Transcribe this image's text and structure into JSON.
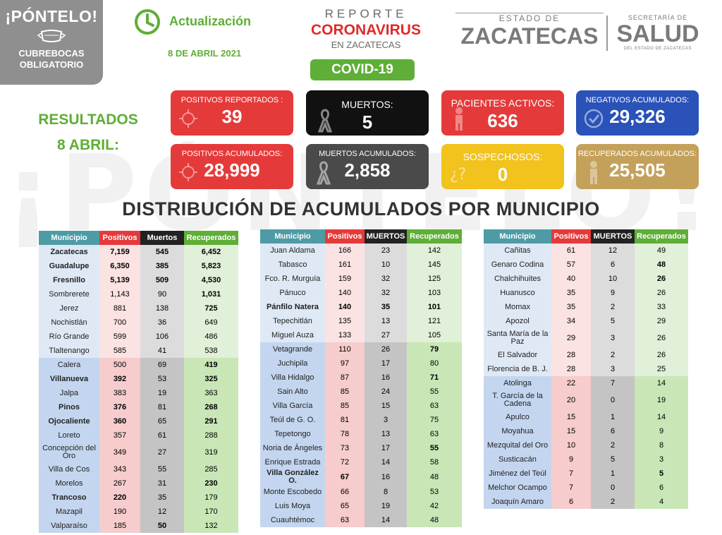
{
  "watermark": "¡PÓNTELO!",
  "badge": {
    "line1": "¡PÓNTELO!",
    "line2": "CUBREBOCAS",
    "line3": "OBLIGATORIO"
  },
  "update": {
    "label": "Actualización",
    "date": "8 DE ABRIL 2021"
  },
  "report": {
    "line1": "REPORTE",
    "line2": "CORONAVIRUS",
    "line3": "EN ZACATECAS",
    "badge": "COVID-19"
  },
  "estado": {
    "line1": "ESTADO DE",
    "line2": "ZACATECAS"
  },
  "salud": {
    "line1": "SECRETARÍA DE",
    "line2": "SALUD",
    "line3": "DEL ESTADO DE ZACATECAS"
  },
  "results": {
    "line1": "RESULTADOS",
    "line2": "8 ABRIL:"
  },
  "cards": [
    {
      "label": "POSITIVOS REPORTADOS :",
      "value": "39",
      "color": "#e53a3a",
      "icon": "virus-icon"
    },
    {
      "label": "MUERTOS:",
      "value": "5",
      "color": "#111111",
      "icon": "ribbon-icon"
    },
    {
      "label": "PACIENTES ACTIVOS:",
      "value": "636",
      "color": "#e53a3a",
      "icon": "person-icon"
    },
    {
      "label": "NEGATIVOS ACUMULADOS:",
      "value": "29,326",
      "color": "#2a52b8",
      "icon": "check-icon"
    },
    {
      "label": "POSITIVOS ACUMULADOS:",
      "value": "28,999",
      "color": "#e53a3a",
      "icon": "virus-icon"
    },
    {
      "label": "MUERTOS ACUMULADOS:",
      "value": "2,858",
      "color": "#4a4a4a",
      "icon": "ribbon-icon"
    },
    {
      "label": "SOSPECHOSOS:",
      "value": "0",
      "color": "#f2c21d",
      "icon": "question-icon"
    },
    {
      "label": "RECUPERADOS ACUMULADOS:",
      "value": "25,505",
      "color": "#c4a15a",
      "icon": "person-icon"
    }
  ],
  "section_title": "DISTRIBUCIÓN DE ACUMULADOS POR MUNICIPIO",
  "tables": [
    {
      "headers": [
        "Municipio",
        "Positivos",
        "Muertos",
        "Recuperados"
      ],
      "rows": [
        [
          "Zacatecas",
          "7,159",
          "545",
          "6,452"
        ],
        [
          "Guadalupe",
          "6,350",
          "385",
          "5,823"
        ],
        [
          "Fresnillo",
          "5,139",
          "509",
          "4,530"
        ],
        [
          "Sombrerete",
          "1,143",
          "90",
          "1,031"
        ],
        [
          "Jerez",
          "881",
          "138",
          "725"
        ],
        [
          "Nochistlán",
          "700",
          "36",
          "649"
        ],
        [
          "Río Grande",
          "599",
          "106",
          "486"
        ],
        [
          "Tlaltenango",
          "585",
          "41",
          "538"
        ],
        [
          "Calera",
          "500",
          "69",
          "419"
        ],
        [
          "Villanueva",
          "392",
          "53",
          "325"
        ],
        [
          "Jalpa",
          "383",
          "19",
          "363"
        ],
        [
          "Pinos",
          "376",
          "81",
          "268"
        ],
        [
          "Ojocaliente",
          "360",
          "65",
          "291"
        ],
        [
          "Loreto",
          "357",
          "61",
          "288"
        ],
        [
          "Concepción del Oro",
          "349",
          "27",
          "319"
        ],
        [
          "Villa de Cos",
          "343",
          "55",
          "285"
        ],
        [
          "Morelos",
          "267",
          "31",
          "230"
        ],
        [
          "Trancoso",
          "220",
          "35",
          "179"
        ],
        [
          "Mazapil",
          "190",
          "12",
          "170"
        ],
        [
          "Valparaíso",
          "185",
          "50",
          "132"
        ]
      ]
    },
    {
      "headers": [
        "Municipio",
        "Positivos",
        "MUERTOS",
        "Recuperados"
      ],
      "rows": [
        [
          "Juan Aldama",
          "166",
          "23",
          "142"
        ],
        [
          "Tabasco",
          "161",
          "10",
          "145"
        ],
        [
          "Fco. R. Murguía",
          "159",
          "32",
          "125"
        ],
        [
          "Pánuco",
          "140",
          "32",
          "103"
        ],
        [
          "Pánfilo Natera",
          "140",
          "35",
          "101"
        ],
        [
          "Tepechitlán",
          "135",
          "13",
          "121"
        ],
        [
          "Miguel Auza",
          "133",
          "27",
          "105"
        ],
        [
          "Vetagrande",
          "110",
          "26",
          "79"
        ],
        [
          "Juchipila",
          "97",
          "17",
          "80"
        ],
        [
          "Villa Hidalgo",
          "87",
          "16",
          "71"
        ],
        [
          "Sain Alto",
          "85",
          "24",
          "55"
        ],
        [
          "Villa García",
          "85",
          "15",
          "63"
        ],
        [
          "Teúl de G. O.",
          "81",
          "3",
          "75"
        ],
        [
          "Tepetongo",
          "78",
          "13",
          "63"
        ],
        [
          "Noria de Ángeles",
          "73",
          "17",
          "55"
        ],
        [
          "Enrique Estrada",
          "72",
          "14",
          "58"
        ],
        [
          "Villa González O.",
          "67",
          "16",
          "48"
        ],
        [
          "Monte Escobedo",
          "66",
          "8",
          "53"
        ],
        [
          "Luis Moya",
          "65",
          "19",
          "42"
        ],
        [
          "Cuauhtémoc",
          "63",
          "14",
          "48"
        ]
      ]
    },
    {
      "headers": [
        "Municipio",
        "Positivos",
        "MUERTOS",
        "Recuperados"
      ],
      "rows": [
        [
          "Cañitas",
          "61",
          "12",
          "49"
        ],
        [
          "Genaro Codina",
          "57",
          "6",
          "48"
        ],
        [
          "Chalchihuites",
          "40",
          "10",
          "26"
        ],
        [
          "Huanusco",
          "35",
          "9",
          "26"
        ],
        [
          "Momax",
          "35",
          "2",
          "33"
        ],
        [
          "Apozol",
          "34",
          "5",
          "29"
        ],
        [
          "Santa María de la Paz",
          "29",
          "3",
          "26"
        ],
        [
          "El Salvador",
          "28",
          "2",
          "26"
        ],
        [
          "Florencia de B. J.",
          "28",
          "3",
          "25"
        ],
        [
          "Atolinga",
          "22",
          "7",
          "14"
        ],
        [
          "T. García de la Cadena",
          "20",
          "0",
          "19"
        ],
        [
          "Apulco",
          "15",
          "1",
          "14"
        ],
        [
          "Moyahua",
          "15",
          "6",
          "9"
        ],
        [
          "Mezquital del Oro",
          "10",
          "2",
          "8"
        ],
        [
          "Susticacán",
          "9",
          "5",
          "3"
        ],
        [
          "Jiménez del Teúl",
          "7",
          "1",
          "5"
        ],
        [
          "Melchor Ocampo",
          "7",
          "0",
          "6"
        ],
        [
          "Joaquín Amaro",
          "6",
          "2",
          "4"
        ]
      ]
    }
  ]
}
